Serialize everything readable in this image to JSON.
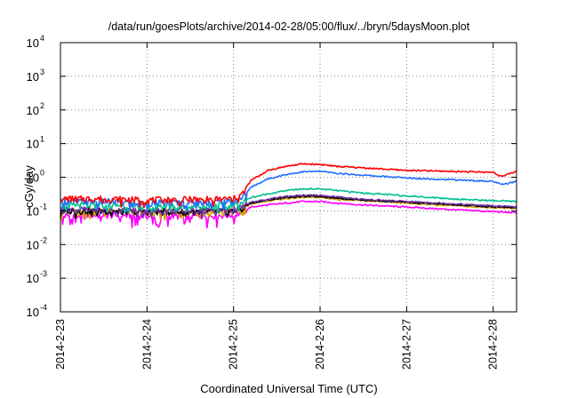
{
  "chart_data": {
    "type": "line",
    "title": "/data/run/goesPlots/archive/2014-02-28/05:00/flux/../bryn/5daysMoon.plot",
    "xlabel": "Coordinated Universal Time (UTC)",
    "ylabel": "cGy/day",
    "y_scale": "log",
    "ylim": [
      0.0001,
      10000
    ],
    "xlim": [
      0,
      5.27
    ],
    "x_ticks": [
      {
        "label": "2014-2-23",
        "value": 0
      },
      {
        "label": "2014-2-24",
        "value": 1
      },
      {
        "label": "2014-2-25",
        "value": 2
      },
      {
        "label": "2014-2-26",
        "value": 3
      },
      {
        "label": "2014-2-27",
        "value": 4
      },
      {
        "label": "2014-2-28",
        "value": 5
      }
    ],
    "y_ticks": [
      {
        "base": "10",
        "exp": "-4",
        "value": 0.0001
      },
      {
        "base": "10",
        "exp": "-3",
        "value": 0.001
      },
      {
        "base": "10",
        "exp": "-2",
        "value": 0.01
      },
      {
        "base": "10",
        "exp": "-1",
        "value": 0.1
      },
      {
        "base": "10",
        "exp": "0",
        "value": 1
      },
      {
        "base": "10",
        "exp": "1",
        "value": 10
      },
      {
        "base": "10",
        "exp": "2",
        "value": 100
      },
      {
        "base": "10",
        "exp": "3",
        "value": 1000
      },
      {
        "base": "10",
        "exp": "4",
        "value": 10000
      }
    ],
    "grid": true,
    "series": [
      {
        "color": "#ff00ff",
        "x": [
          0,
          0.5,
          1.0,
          1.5,
          2.0,
          2.1,
          2.2,
          2.4,
          2.6,
          2.8,
          3.0,
          3.2,
          3.5,
          4.0,
          4.5,
          5.0,
          5.27
        ],
        "y": [
          0.07,
          0.075,
          0.07,
          0.07,
          0.075,
          0.09,
          0.13,
          0.15,
          0.17,
          0.19,
          0.19,
          0.17,
          0.15,
          0.13,
          0.11,
          0.095,
          0.088
        ]
      },
      {
        "color": "#d4a000",
        "x": [
          0,
          0.5,
          1.0,
          1.5,
          2.0,
          2.1,
          2.2,
          2.4,
          2.6,
          2.8,
          3.0,
          3.2,
          3.5,
          4.0,
          4.5,
          5.0,
          5.27
        ],
        "y": [
          0.09,
          0.095,
          0.09,
          0.09,
          0.095,
          0.11,
          0.16,
          0.2,
          0.23,
          0.25,
          0.25,
          0.22,
          0.2,
          0.17,
          0.145,
          0.125,
          0.12
        ]
      },
      {
        "color": "#000000",
        "x": [
          0,
          0.5,
          1.0,
          1.5,
          2.0,
          2.1,
          2.2,
          2.4,
          2.6,
          2.8,
          3.0,
          3.2,
          3.5,
          4.0,
          4.5,
          5.0,
          5.27
        ],
        "y": [
          0.1,
          0.1,
          0.095,
          0.095,
          0.1,
          0.12,
          0.17,
          0.21,
          0.25,
          0.27,
          0.27,
          0.24,
          0.21,
          0.18,
          0.155,
          0.13,
          0.125
        ]
      },
      {
        "color": "#7030a0",
        "x": [
          0,
          0.5,
          1.0,
          1.5,
          2.0,
          2.1,
          2.2,
          2.4,
          2.6,
          2.8,
          3.0,
          3.2,
          3.5,
          4.0,
          4.5,
          5.0,
          5.27
        ],
        "y": [
          0.11,
          0.11,
          0.1,
          0.1,
          0.11,
          0.13,
          0.18,
          0.22,
          0.27,
          0.29,
          0.29,
          0.26,
          0.22,
          0.19,
          0.165,
          0.14,
          0.13
        ]
      },
      {
        "color": "#00c090",
        "x": [
          0,
          0.5,
          1.0,
          1.5,
          2.0,
          2.1,
          2.2,
          2.4,
          2.6,
          2.8,
          3.0,
          3.2,
          3.5,
          4.0,
          4.5,
          5.0,
          5.27
        ],
        "y": [
          0.15,
          0.15,
          0.14,
          0.14,
          0.15,
          0.18,
          0.25,
          0.32,
          0.4,
          0.45,
          0.45,
          0.4,
          0.34,
          0.28,
          0.23,
          0.2,
          0.19
        ]
      },
      {
        "color": "#1f6fff",
        "x": [
          0,
          0.5,
          1.0,
          1.5,
          2.0,
          2.1,
          2.2,
          2.4,
          2.6,
          2.8,
          3.0,
          3.2,
          3.5,
          4.0,
          4.5,
          5.0,
          5.1,
          5.27
        ],
        "y": [
          0.19,
          0.19,
          0.17,
          0.18,
          0.19,
          0.25,
          0.5,
          0.9,
          1.2,
          1.45,
          1.5,
          1.3,
          1.15,
          0.95,
          0.85,
          0.75,
          0.6,
          0.75
        ]
      },
      {
        "color": "#ff0000",
        "x": [
          0,
          0.5,
          1.0,
          1.5,
          2.0,
          2.1,
          2.2,
          2.4,
          2.6,
          2.8,
          3.0,
          3.2,
          3.5,
          4.0,
          4.5,
          5.0,
          5.1,
          5.27
        ],
        "y": [
          0.23,
          0.23,
          0.21,
          0.22,
          0.23,
          0.32,
          0.8,
          1.6,
          2.1,
          2.5,
          2.4,
          2.1,
          1.9,
          1.6,
          1.5,
          1.4,
          1.05,
          1.5
        ]
      }
    ]
  }
}
